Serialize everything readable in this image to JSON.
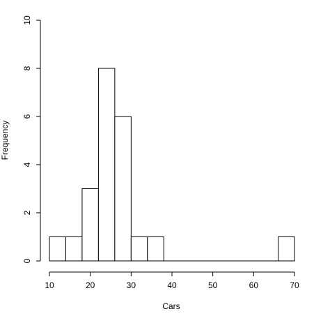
{
  "chart_data": {
    "type": "histogram",
    "xlabel": "Cars",
    "ylabel": "Frequency",
    "bins": [
      10,
      14,
      18,
      22,
      26,
      30,
      34,
      38,
      42,
      46,
      50,
      54,
      58,
      62,
      66,
      70
    ],
    "values": [
      1,
      1,
      3,
      8,
      6,
      1,
      1,
      0,
      0,
      0,
      0,
      0,
      0,
      0,
      1
    ],
    "color": "#ffffff",
    "xlim": [
      10,
      70
    ],
    "xticks": [
      10,
      20,
      30,
      40,
      50,
      60,
      70
    ],
    "ylim": [
      0,
      10
    ],
    "yticks": [
      0,
      2,
      4,
      6,
      8,
      10
    ]
  }
}
